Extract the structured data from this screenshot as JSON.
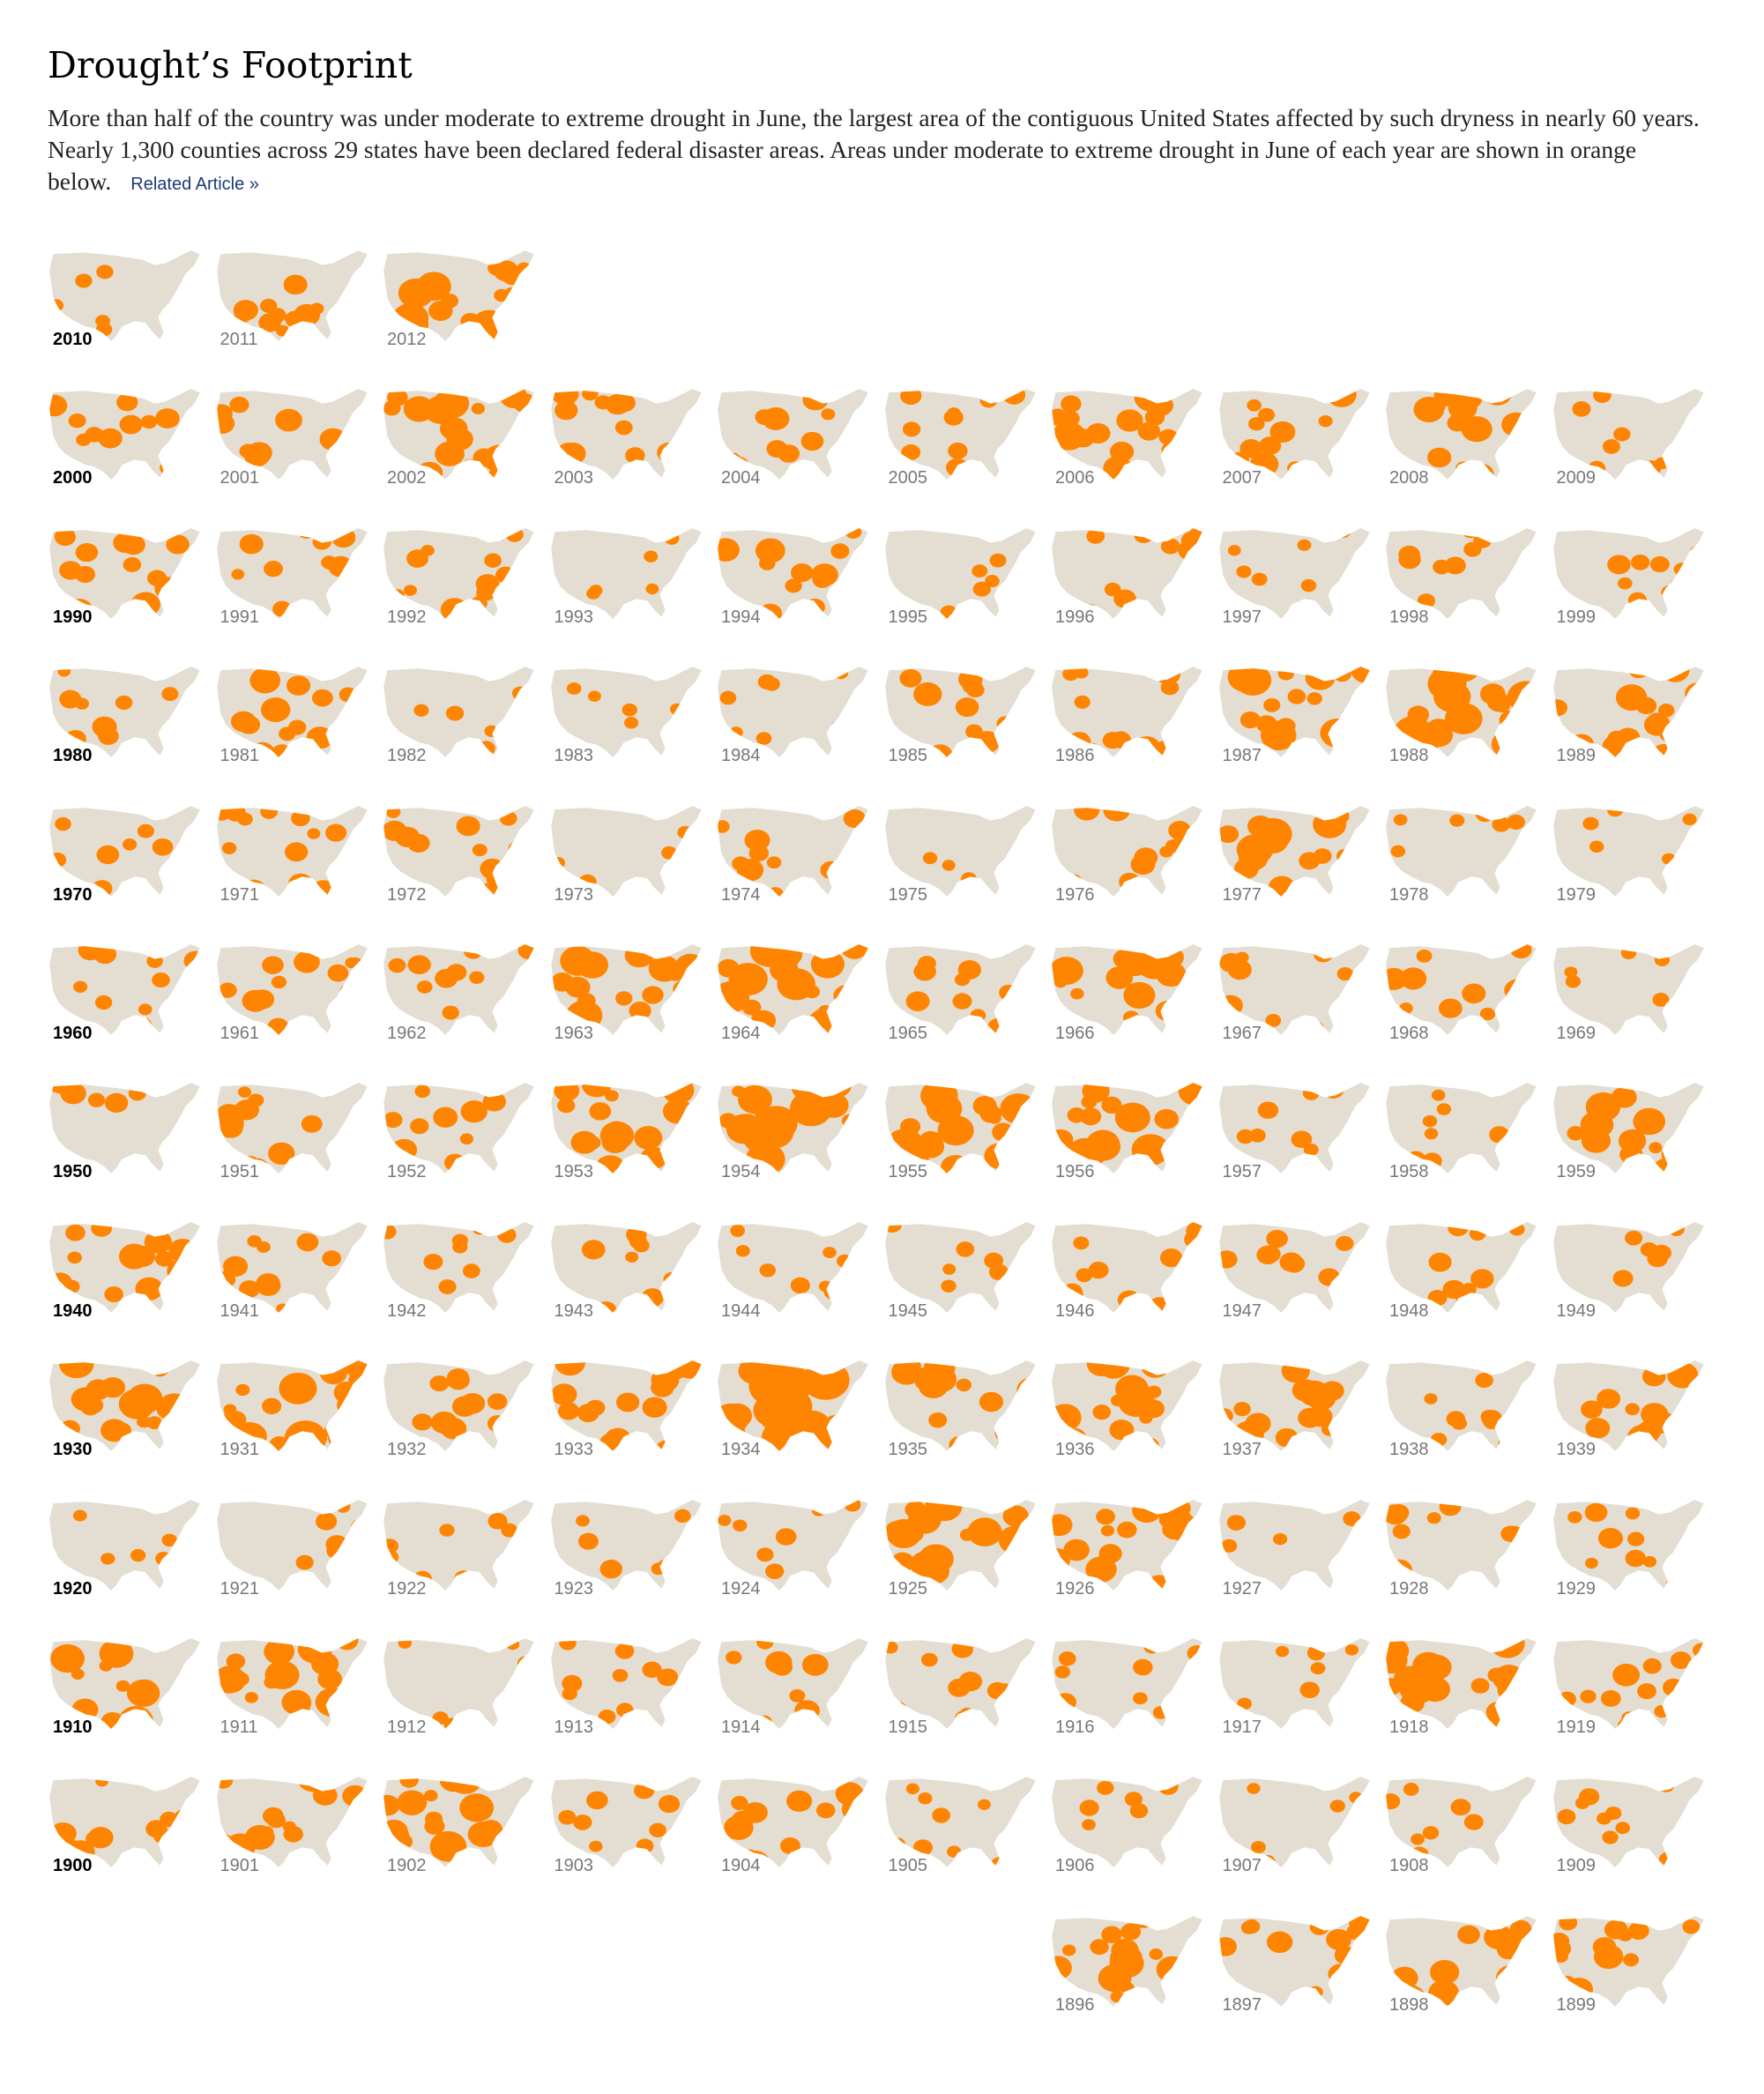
{
  "header": {
    "title": "Drought’s Footprint",
    "intro": "More than half of the country was under moderate to extreme drought in June, the largest area of the contiguous United States affected by such dryness in nearly 60 years. Nearly 1,300 counties across 29 states have been declared federal disaster areas. Areas under moderate to extreme drought in June of each year are shown in orange below.",
    "related_link": "Related Article »"
  },
  "colors": {
    "land": "#e3ddd2",
    "drought": "#ff8400",
    "decade_label": "#000000",
    "year_label": "#777777",
    "link": "#1a3a7a"
  },
  "rows": [
    {
      "decade": "2010",
      "years": [
        "2010",
        "2011",
        "2012"
      ],
      "drought_fraction": [
        0.12,
        0.28,
        0.62
      ]
    },
    {
      "decade": "2000",
      "years": [
        "2000",
        "2001",
        "2002",
        "2003",
        "2004",
        "2005",
        "2006",
        "2007",
        "2008",
        "2009"
      ],
      "drought_fraction": [
        0.38,
        0.3,
        0.5,
        0.3,
        0.3,
        0.22,
        0.52,
        0.4,
        0.38,
        0.14
      ]
    },
    {
      "decade": "1990",
      "years": [
        "1990",
        "1991",
        "1992",
        "1993",
        "1994",
        "1995",
        "1996",
        "1997",
        "1998",
        "1999"
      ],
      "drought_fraction": [
        0.35,
        0.3,
        0.32,
        0.05,
        0.35,
        0.12,
        0.3,
        0.1,
        0.2,
        0.22
      ]
    },
    {
      "decade": "1980",
      "years": [
        "1980",
        "1981",
        "1982",
        "1983",
        "1984",
        "1985",
        "1986",
        "1987",
        "1988",
        "1989"
      ],
      "drought_fraction": [
        0.25,
        0.4,
        0.14,
        0.06,
        0.12,
        0.35,
        0.32,
        0.5,
        0.6,
        0.45
      ]
    },
    {
      "decade": "1970",
      "years": [
        "1970",
        "1971",
        "1972",
        "1973",
        "1974",
        "1975",
        "1976",
        "1977",
        "1978",
        "1979"
      ],
      "drought_fraction": [
        0.22,
        0.32,
        0.28,
        0.14,
        0.3,
        0.08,
        0.35,
        0.55,
        0.14,
        0.1
      ]
    },
    {
      "decade": "1960",
      "years": [
        "1960",
        "1961",
        "1962",
        "1963",
        "1964",
        "1965",
        "1966",
        "1967",
        "1968",
        "1969"
      ],
      "drought_fraction": [
        0.26,
        0.3,
        0.22,
        0.5,
        0.55,
        0.28,
        0.46,
        0.26,
        0.3,
        0.08
      ]
    },
    {
      "decade": "1950",
      "years": [
        "1950",
        "1951",
        "1952",
        "1953",
        "1954",
        "1955",
        "1956",
        "1957",
        "1958",
        "1959"
      ],
      "drought_fraction": [
        0.28,
        0.36,
        0.3,
        0.45,
        0.65,
        0.6,
        0.52,
        0.18,
        0.16,
        0.46
      ]
    },
    {
      "decade": "1940",
      "years": [
        "1940",
        "1941",
        "1942",
        "1943",
        "1944",
        "1945",
        "1946",
        "1947",
        "1948",
        "1949"
      ],
      "drought_fraction": [
        0.42,
        0.28,
        0.14,
        0.24,
        0.2,
        0.16,
        0.3,
        0.24,
        0.22,
        0.2
      ]
    },
    {
      "decade": "1930",
      "years": [
        "1930",
        "1931",
        "1932",
        "1933",
        "1934",
        "1935",
        "1936",
        "1937",
        "1938",
        "1939"
      ],
      "drought_fraction": [
        0.5,
        0.62,
        0.3,
        0.42,
        0.8,
        0.42,
        0.6,
        0.42,
        0.18,
        0.4
      ]
    },
    {
      "decade": "1920",
      "years": [
        "1920",
        "1921",
        "1922",
        "1923",
        "1924",
        "1925",
        "1926",
        "1927",
        "1928",
        "1929"
      ],
      "drought_fraction": [
        0.08,
        0.26,
        0.14,
        0.2,
        0.2,
        0.52,
        0.45,
        0.12,
        0.3,
        0.26
      ]
    },
    {
      "decade": "1910",
      "years": [
        "1910",
        "1911",
        "1912",
        "1913",
        "1914",
        "1915",
        "1916",
        "1917",
        "1918",
        "1919"
      ],
      "drought_fraction": [
        0.48,
        0.46,
        0.08,
        0.22,
        0.3,
        0.22,
        0.18,
        0.18,
        0.55,
        0.3
      ]
    },
    {
      "decade": "1900",
      "years": [
        "1900",
        "1901",
        "1902",
        "1903",
        "1904",
        "1905",
        "1906",
        "1907",
        "1908",
        "1909"
      ],
      "drought_fraction": [
        0.36,
        0.4,
        0.5,
        0.22,
        0.36,
        0.18,
        0.16,
        0.06,
        0.16,
        0.18
      ]
    },
    {
      "decade": "",
      "years": [
        "1896",
        "1897",
        "1898",
        "1899"
      ],
      "drought_fraction": [
        0.45,
        0.28,
        0.38,
        0.35
      ]
    }
  ]
}
